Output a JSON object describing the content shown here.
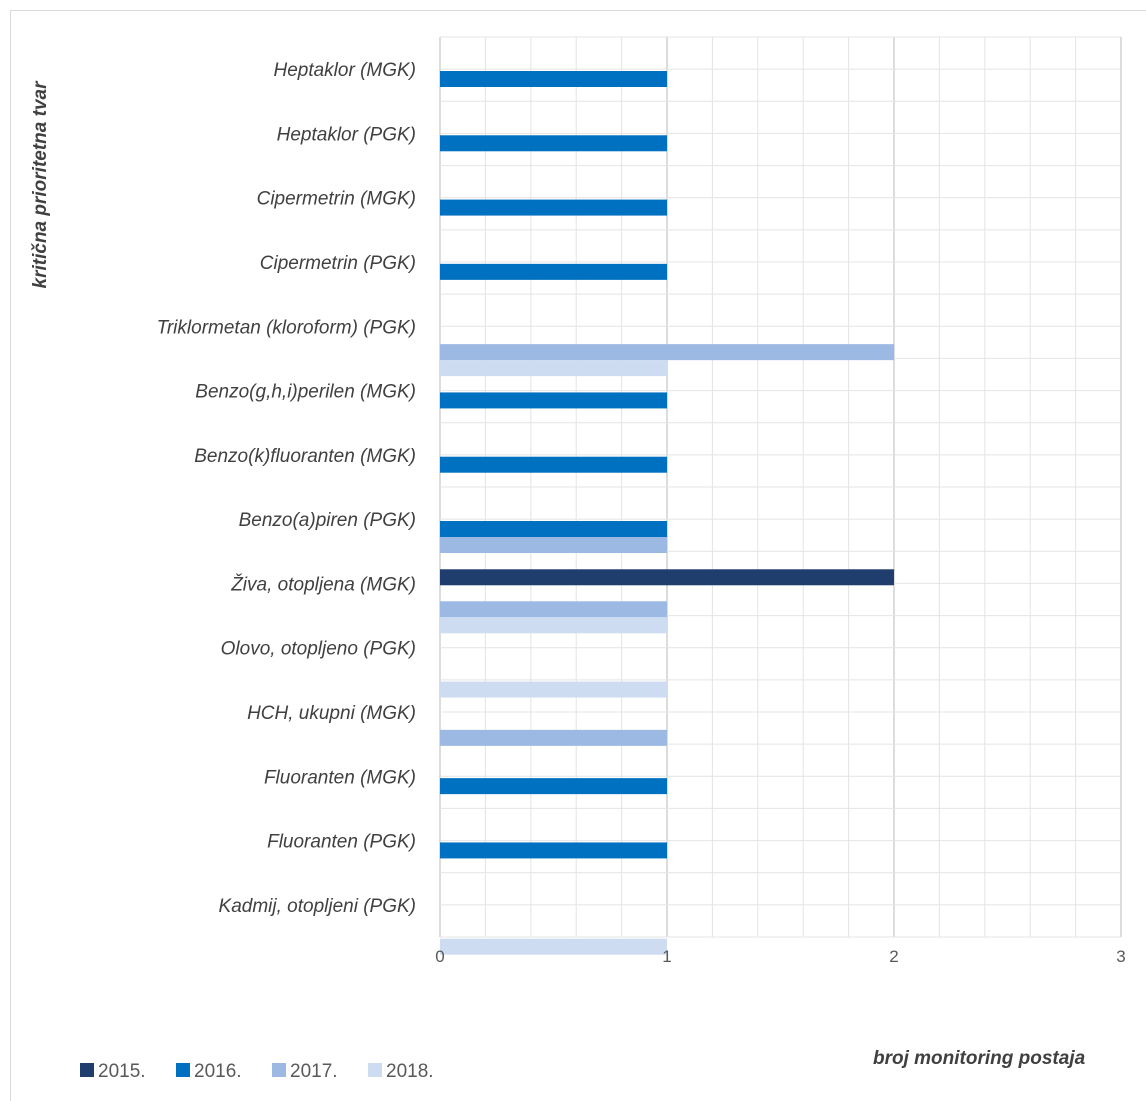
{
  "chart_data": {
    "type": "bar",
    "orientation": "horizontal",
    "categories": [
      "Heptaklor (MGK)",
      "Heptaklor (PGK)",
      "Cipermetrin (MGK)",
      "Cipermetrin (PGK)",
      "Triklormetan (kloroform) (PGK)",
      "Benzo(g,h,i)perilen (MGK)",
      "Benzo(k)fluoranten (MGK)",
      "Benzo(a)piren (PGK)",
      "Živa, otopljena (MGK)",
      "Olovo, otopljeno (PGK)",
      "HCH, ukupni (MGK)",
      "Fluoranten (MGK)",
      "Fluoranten (PGK)",
      "Kadmij, otopljeni (PGK)"
    ],
    "series": [
      {
        "name": "2015.",
        "color": "#1f3e6e",
        "values": [
          null,
          null,
          null,
          null,
          null,
          null,
          null,
          null,
          2,
          null,
          null,
          null,
          null,
          null
        ]
      },
      {
        "name": "2016.",
        "color": "#0070c0",
        "values": [
          1,
          1,
          1,
          1,
          null,
          1,
          1,
          1,
          null,
          null,
          null,
          1,
          1,
          null
        ]
      },
      {
        "name": "2017.",
        "color": "#9cb9e3",
        "values": [
          null,
          null,
          null,
          null,
          2,
          null,
          null,
          1,
          1,
          null,
          1,
          null,
          null,
          null
        ]
      },
      {
        "name": "2018.",
        "color": "#cedcf1",
        "values": [
          null,
          null,
          null,
          null,
          1,
          null,
          null,
          null,
          1,
          1,
          null,
          null,
          null,
          1
        ]
      }
    ],
    "xlim": [
      0,
      3
    ],
    "xticks": [
      "0",
      "1",
      "2",
      "3"
    ],
    "xlabel": "broj monitoring postaja",
    "ylabel": "kritična prioritetna tvar",
    "grid": true,
    "legend_position": "bottom-left"
  }
}
